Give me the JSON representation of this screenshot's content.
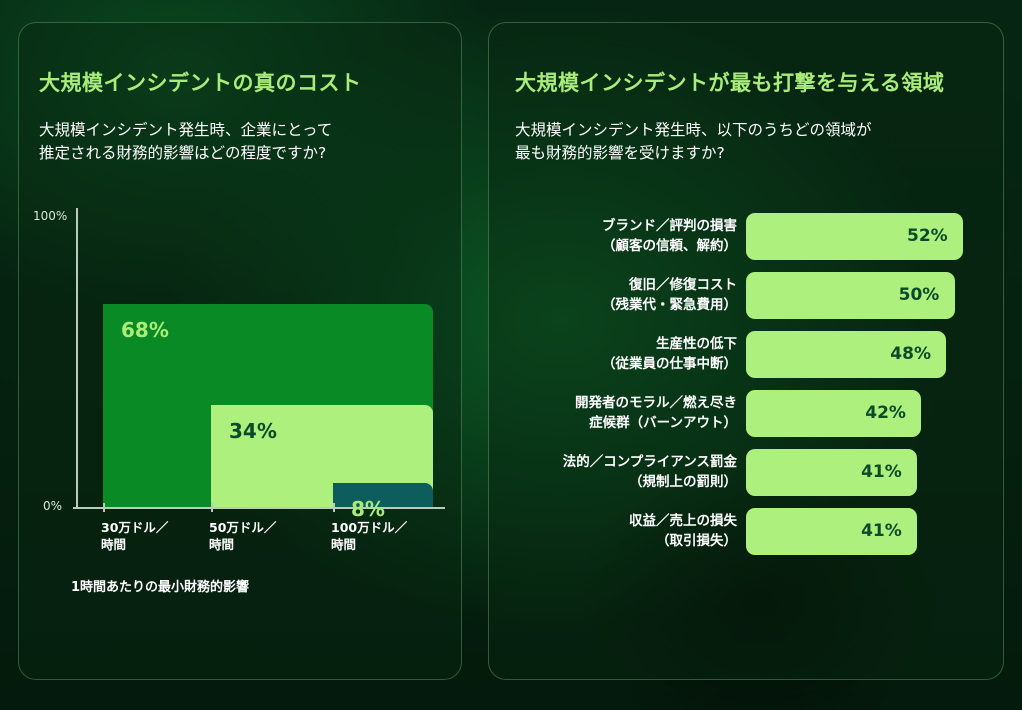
{
  "left_panel": {
    "title": "大規模インシデントの真のコスト",
    "subtitle": "大規模インシデント発生時、企業にとって\n推定される財務的影響はどの程度ですか?",
    "caption": "1時間あたりの最小財務的影響"
  },
  "right_panel": {
    "title": "大規模インシデントが最も打撃を与える領域",
    "subtitle": "大規模インシデント発生時、以下のうちどの領域が\n最も財務的影響を受けますか?"
  },
  "chart_data": [
    {
      "type": "bar",
      "categories": [
        "30万ドル／\n時間",
        "50万ドル／\n時間",
        "100万ドル／\n時間"
      ],
      "values": [
        68,
        34,
        8
      ],
      "value_labels": [
        "68%",
        "34%",
        "8%"
      ],
      "ylim": [
        0,
        100
      ],
      "ytick_labels": [
        "100%",
        "0%"
      ],
      "colors": [
        "#098a24",
        "#aef07e",
        "#0d5d5c"
      ],
      "label_colors": [
        "#a9ec7a",
        "#0b4a2a",
        "#a9ec7a"
      ],
      "xlabel": "1時間あたりの最小財務的影響",
      "grid": false
    },
    {
      "type": "bar",
      "orientation": "horizontal",
      "categories": [
        "ブランド／評判の損害\n（顧客の信頼、解約）",
        "復旧／修復コスト\n（残業代・緊急費用）",
        "生産性の低下\n（従業員の仕事中断）",
        "開発者のモラル／燃え尽き\n症候群（バーンアウト）",
        "法的／コンプライアンス罰金\n（規制上の罰則）",
        "収益／売上の損失\n（取引損失）"
      ],
      "values": [
        52,
        50,
        48,
        42,
        41,
        41
      ],
      "value_labels": [
        "52%",
        "50%",
        "48%",
        "42%",
        "41%",
        "41%"
      ],
      "color": "#aef07e"
    }
  ]
}
